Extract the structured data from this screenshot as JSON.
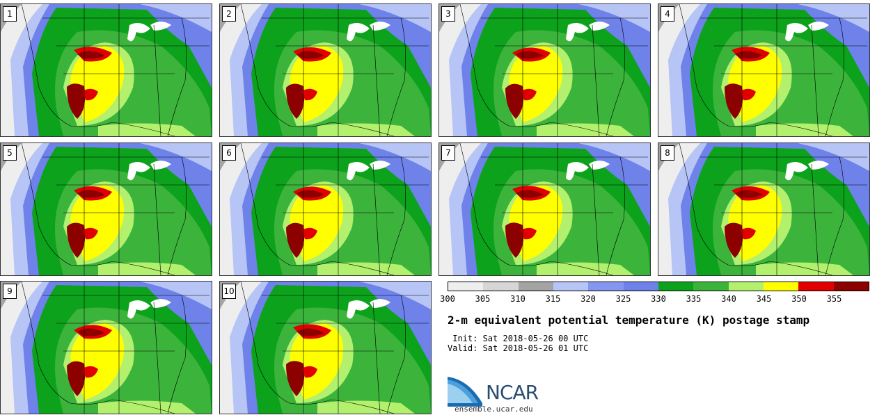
{
  "panels": [
    {
      "label": "1"
    },
    {
      "label": "2"
    },
    {
      "label": "3"
    },
    {
      "label": "4"
    },
    {
      "label": "5"
    },
    {
      "label": "6"
    },
    {
      "label": "7"
    },
    {
      "label": "8"
    },
    {
      "label": "9"
    },
    {
      "label": "10"
    }
  ],
  "colorbar": {
    "colors": [
      "#eeeeee",
      "#d6d6d6",
      "#a4a4a4",
      "#b6c4f6",
      "#8496f0",
      "#6e82ea",
      "#0ca21c",
      "#3cb43c",
      "#b2f06e",
      "#ffff00",
      "#e10000",
      "#8c0000"
    ],
    "ticks": [
      "300",
      "305",
      "310",
      "315",
      "320",
      "325",
      "330",
      "335",
      "340",
      "345",
      "350",
      "355"
    ]
  },
  "title": "2-m equivalent potential temperature (K) postage stamp",
  "init": " Init: Sat 2018-05-26 00 UTC",
  "valid": "Valid: Sat 2018-05-26 01 UTC",
  "logo": {
    "text": "NCAR",
    "url": "ensemble.ucar.edu",
    "color": "#2a4d74"
  }
}
